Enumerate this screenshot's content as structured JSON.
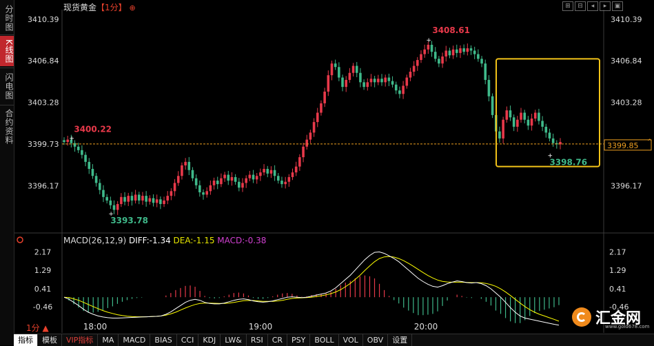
{
  "sidebar": {
    "tabs": [
      {
        "label": "分时图",
        "active": false
      },
      {
        "label": "K线图",
        "active": true
      },
      {
        "label": "闪电图",
        "active": false
      },
      {
        "label": "合约资料",
        "active": false
      }
    ]
  },
  "header": {
    "title": "现货黄金",
    "timeframe": "【1分】",
    "timeframe_icon": "crosshair-icon",
    "toolbar_icons": [
      "zoom-in-icon",
      "zoom-out-icon",
      "move-left-icon",
      "move-right-icon",
      "settings-icon"
    ]
  },
  "colors": {
    "up": "#e8394a",
    "down": "#3fb98a",
    "accent": "#f0a020",
    "highlight_box": "#f3c318",
    "diff": "#ffffff",
    "dea": "#ffff00",
    "macd_label": "#d040d0"
  },
  "chart_data": [
    {
      "type": "candlestick",
      "interval": "1分",
      "y_tick_labels": [
        "3410.39",
        "3406.84",
        "3403.28",
        "3399.73",
        "3396.17"
      ],
      "x_tick_labels": [
        "18:00",
        "19:00",
        "20:00"
      ],
      "ylim": [
        3392.6,
        3411.2
      ],
      "current_price": "3399.85",
      "price_line": 3399.73,
      "annotations": [
        {
          "label": "3400.22",
          "value": 3400.22,
          "type": "local-high",
          "color": "up"
        },
        {
          "label": "3393.78",
          "value": 3393.78,
          "type": "low",
          "color": "down"
        },
        {
          "label": "3408.61",
          "value": 3408.61,
          "type": "high",
          "color": "up"
        },
        {
          "label": "3398.76",
          "value": 3398.76,
          "type": "local-low",
          "color": "down"
        }
      ],
      "highlight_box": {
        "from_time": "20:05",
        "to_time": "20:40",
        "price_range": [
          3397.8,
          3407.0
        ]
      },
      "series_close": [
        3399.9,
        3400.1,
        3399.8,
        3399.5,
        3399.2,
        3398.8,
        3398.2,
        3397.6,
        3397.0,
        3396.4,
        3395.8,
        3395.2,
        3394.9,
        3394.5,
        3394.1,
        3394.6,
        3395.2,
        3394.8,
        3395.3,
        3394.9,
        3395.4,
        3394.9,
        3395.3,
        3394.8,
        3395.1,
        3394.7,
        3395.0,
        3394.6,
        3394.9,
        3395.3,
        3395.7,
        3396.4,
        3397.0,
        3397.9,
        3398.2,
        3397.5,
        3396.8,
        3396.2,
        3395.6,
        3395.4,
        3395.7,
        3396.2,
        3396.6,
        3396.3,
        3396.8,
        3397.1,
        3396.6,
        3396.9,
        3396.5,
        3396.0,
        3396.4,
        3396.8,
        3397.1,
        3396.7,
        3397.0,
        3397.3,
        3397.6,
        3397.2,
        3397.5,
        3397.0,
        3396.6,
        3396.3,
        3396.5,
        3396.9,
        3397.3,
        3397.8,
        3398.6,
        3399.5,
        3400.1,
        3400.7,
        3401.6,
        3402.4,
        3403.2,
        3404.2,
        3405.6,
        3406.6,
        3406.3,
        3405.4,
        3404.6,
        3405.2,
        3405.8,
        3406.4,
        3405.8,
        3405.0,
        3404.6,
        3405.0,
        3405.3,
        3405.0,
        3405.3,
        3405.0,
        3405.4,
        3405.1,
        3404.8,
        3404.3,
        3404.0,
        3404.7,
        3405.4,
        3405.9,
        3406.4,
        3406.9,
        3407.4,
        3407.8,
        3408.2,
        3407.6,
        3407.0,
        3406.6,
        3407.2,
        3407.7,
        3407.3,
        3407.8,
        3407.5,
        3407.9,
        3407.6,
        3407.9,
        3407.7,
        3407.4,
        3407.0,
        3406.6,
        3405.2,
        3403.8,
        3402.2,
        3400.8,
        3400.2,
        3401.8,
        3402.6,
        3402.0,
        3401.2,
        3401.8,
        3402.4,
        3401.8,
        3401.3,
        3401.9,
        3402.4,
        3401.7,
        3401.2,
        3400.7,
        3400.2,
        3399.8,
        3399.7,
        3399.9
      ]
    },
    {
      "type": "bar-line",
      "name": "MACD",
      "legend": {
        "params": "MACD(26,12,9)",
        "diff": "DIFF:-1.34",
        "dea": "DEA:-1.15",
        "macd": "MACD:-0.38"
      },
      "y_tick_labels": [
        "2.17",
        "1.29",
        "0.41",
        "-0.46"
      ],
      "ylim": [
        -1.15,
        2.35
      ],
      "diff": [
        0.0,
        -0.1,
        -0.25,
        -0.4,
        -0.58,
        -0.72,
        -0.82,
        -0.9,
        -0.95,
        -0.98,
        -1.0,
        -1.0,
        -0.99,
        -0.98,
        -0.97,
        -0.96,
        -0.95,
        -0.94,
        -0.93,
        -0.92,
        -0.9,
        -0.82,
        -0.7,
        -0.55,
        -0.4,
        -0.25,
        -0.15,
        -0.1,
        -0.15,
        -0.25,
        -0.3,
        -0.32,
        -0.32,
        -0.28,
        -0.22,
        -0.15,
        -0.1,
        -0.08,
        -0.12,
        -0.18,
        -0.22,
        -0.24,
        -0.22,
        -0.18,
        -0.12,
        -0.06,
        0.0,
        0.02,
        0.0,
        -0.02,
        0.0,
        0.05,
        0.1,
        0.15,
        0.2,
        0.3,
        0.45,
        0.65,
        0.85,
        1.05,
        1.3,
        1.55,
        1.8,
        2.0,
        2.15,
        2.17,
        2.1,
        1.98,
        1.85,
        1.7,
        1.5,
        1.3,
        1.1,
        0.9,
        0.75,
        0.62,
        0.52,
        0.48,
        0.55,
        0.65,
        0.72,
        0.78,
        0.75,
        0.7,
        0.68,
        0.7,
        0.65,
        0.55,
        0.4,
        0.2,
        0.0,
        -0.25,
        -0.5,
        -0.72,
        -0.9,
        -1.0,
        -1.05,
        -1.1,
        -1.15,
        -1.2,
        -1.25,
        -1.3,
        -1.34
      ],
      "dea": [
        0.0,
        -0.02,
        -0.08,
        -0.15,
        -0.25,
        -0.35,
        -0.45,
        -0.55,
        -0.64,
        -0.72,
        -0.78,
        -0.84,
        -0.88,
        -0.91,
        -0.93,
        -0.94,
        -0.94,
        -0.94,
        -0.93,
        -0.92,
        -0.9,
        -0.86,
        -0.8,
        -0.72,
        -0.62,
        -0.52,
        -0.43,
        -0.35,
        -0.3,
        -0.28,
        -0.28,
        -0.29,
        -0.3,
        -0.3,
        -0.28,
        -0.25,
        -0.21,
        -0.17,
        -0.16,
        -0.16,
        -0.18,
        -0.2,
        -0.2,
        -0.2,
        -0.18,
        -0.15,
        -0.1,
        -0.06,
        -0.04,
        -0.03,
        -0.02,
        0.0,
        0.03,
        0.07,
        0.11,
        0.17,
        0.25,
        0.36,
        0.5,
        0.66,
        0.85,
        1.05,
        1.28,
        1.5,
        1.7,
        1.85,
        1.93,
        1.95,
        1.92,
        1.85,
        1.75,
        1.62,
        1.48,
        1.33,
        1.18,
        1.04,
        0.92,
        0.82,
        0.76,
        0.73,
        0.72,
        0.72,
        0.72,
        0.71,
        0.7,
        0.7,
        0.69,
        0.66,
        0.6,
        0.52,
        0.4,
        0.25,
        0.08,
        -0.1,
        -0.28,
        -0.45,
        -0.6,
        -0.72,
        -0.82,
        -0.9,
        -0.98,
        -1.06,
        -1.15
      ]
    }
  ],
  "macd_title_icon": "settings-dot-icon",
  "period_selector": {
    "label": "1分",
    "arrow": "▲"
  },
  "bottom_tabs": [
    {
      "label": "指标",
      "active": true
    },
    {
      "label": "模板",
      "active": false
    },
    {
      "label": "VIP指标",
      "active": false,
      "vip": true
    },
    {
      "label": "MA"
    },
    {
      "label": "MACD"
    },
    {
      "label": "BIAS"
    },
    {
      "label": "CCI"
    },
    {
      "label": "KDJ"
    },
    {
      "label": "LW&"
    },
    {
      "label": "RSI"
    },
    {
      "label": "CR"
    },
    {
      "label": "PSY"
    },
    {
      "label": "BOLL"
    },
    {
      "label": "VOL"
    },
    {
      "label": "OBV"
    },
    {
      "label": "设置"
    }
  ],
  "logo": {
    "name": "汇金网",
    "url": "www.gold678.com",
    "icon": "gold678-logo-icon"
  }
}
